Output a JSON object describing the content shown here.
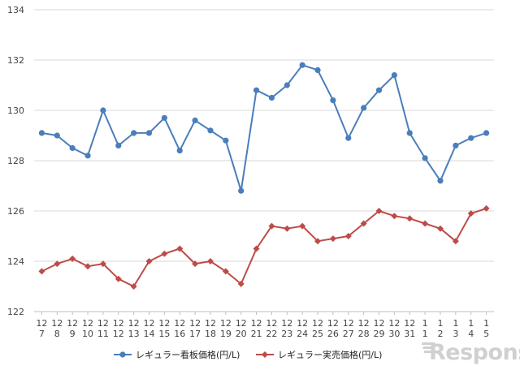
{
  "chart_data": {
    "type": "line",
    "categories": [
      [
        "12",
        "7"
      ],
      [
        "12",
        "8"
      ],
      [
        "12",
        "9"
      ],
      [
        "12",
        "10"
      ],
      [
        "12",
        "11"
      ],
      [
        "12",
        "12"
      ],
      [
        "12",
        "13"
      ],
      [
        "12",
        "14"
      ],
      [
        "12",
        "15"
      ],
      [
        "12",
        "16"
      ],
      [
        "12",
        "17"
      ],
      [
        "12",
        "18"
      ],
      [
        "12",
        "19"
      ],
      [
        "12",
        "20"
      ],
      [
        "12",
        "21"
      ],
      [
        "12",
        "22"
      ],
      [
        "12",
        "23"
      ],
      [
        "12",
        "24"
      ],
      [
        "12",
        "25"
      ],
      [
        "12",
        "26"
      ],
      [
        "12",
        "27"
      ],
      [
        "12",
        "28"
      ],
      [
        "12",
        "29"
      ],
      [
        "12",
        "30"
      ],
      [
        "12",
        "31"
      ],
      [
        "1",
        "1"
      ],
      [
        "1",
        "2"
      ],
      [
        "1",
        "3"
      ],
      [
        "1",
        "4"
      ],
      [
        "1",
        "5"
      ]
    ],
    "series": [
      {
        "name": "レギュラー看板価格(円/L)",
        "color": "#4a7ebb",
        "marker": "circle",
        "values": [
          129.1,
          129.0,
          128.5,
          128.2,
          130.0,
          128.6,
          129.1,
          129.1,
          129.7,
          128.4,
          129.6,
          129.2,
          128.8,
          126.8,
          130.8,
          130.5,
          131.0,
          131.8,
          131.6,
          130.4,
          128.9,
          130.1,
          130.8,
          131.4,
          129.1,
          128.1,
          127.2,
          128.6,
          128.9,
          129.1
        ]
      },
      {
        "name": "レギュラー実売価格(円/L)",
        "color": "#be4b48",
        "marker": "diamond",
        "values": [
          123.6,
          123.9,
          124.1,
          123.8,
          123.9,
          123.3,
          123.0,
          124.0,
          124.3,
          124.5,
          123.9,
          124.0,
          123.6,
          123.1,
          124.5,
          125.4,
          125.3,
          125.4,
          124.8,
          124.9,
          125.0,
          125.5,
          126.0,
          125.8,
          125.7,
          125.5,
          125.3,
          124.8,
          125.9,
          126.1
        ]
      }
    ],
    "yticks": [
      122,
      124,
      126,
      128,
      130,
      132,
      134
    ],
    "ylim": [
      122,
      134
    ],
    "grid": true,
    "legend": "bottom-center"
  },
  "watermark": "Response."
}
